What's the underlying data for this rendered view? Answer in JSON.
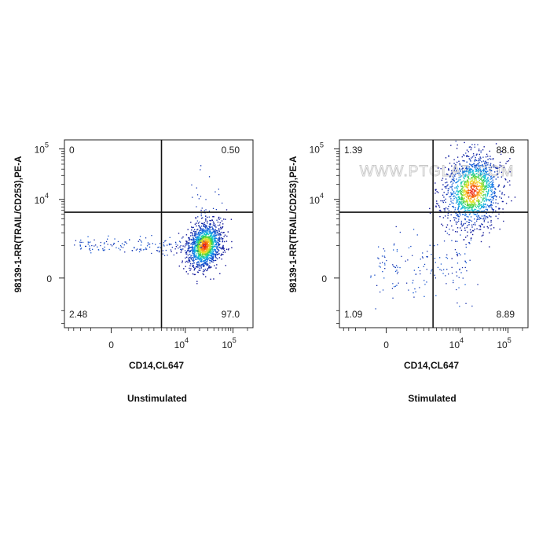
{
  "chart_data": [
    {
      "type": "scatter",
      "title": "Unstimulated",
      "xlabel": "CD14,CL647",
      "ylabel": "98139-1-RR(TRAIL/CD253),PE-A",
      "x_scale": "biexponential",
      "y_scale": "biexponential",
      "x_ticks": [
        {
          "value": 0,
          "base": "0",
          "exp": ""
        },
        {
          "value": 10000,
          "base": "10",
          "exp": "4"
        },
        {
          "value": 100000,
          "base": "10",
          "exp": "5"
        }
      ],
      "y_ticks": [
        {
          "value": 0,
          "base": "0",
          "exp": ""
        },
        {
          "value": 10000,
          "base": "10",
          "exp": "4"
        },
        {
          "value": 100000,
          "base": "10",
          "exp": "5"
        }
      ],
      "gate": {
        "x": 3000,
        "y": 5500
      },
      "quadrants": {
        "top_left": "0",
        "top_right": "0.50",
        "bottom_left": "2.48",
        "bottom_right": "97.0"
      },
      "populations": [
        {
          "x_center": 25000,
          "y_center": 1000,
          "spread_x": 0.18,
          "spread_y": 0.22,
          "fraction": 0.97,
          "tail_to_x": -1200
        }
      ],
      "grid": false,
      "watermark": ""
    },
    {
      "type": "scatter",
      "title": "Stimulated",
      "xlabel": "CD14,CL647",
      "ylabel": "98139-1-RR(TRAIL/CD253),PE-A",
      "x_scale": "biexponential",
      "y_scale": "biexponential",
      "x_ticks": [
        {
          "value": 0,
          "base": "0",
          "exp": ""
        },
        {
          "value": 10000,
          "base": "10",
          "exp": "4"
        },
        {
          "value": 100000,
          "base": "10",
          "exp": "5"
        }
      ],
      "y_ticks": [
        {
          "value": 0,
          "base": "0",
          "exp": ""
        },
        {
          "value": 10000,
          "base": "10",
          "exp": "4"
        },
        {
          "value": 100000,
          "base": "10",
          "exp": "5"
        }
      ],
      "gate": {
        "x": 2500,
        "y": 5500
      },
      "quadrants": {
        "top_left": "1.39",
        "top_right": "88.6",
        "bottom_left": "1.09",
        "bottom_right": "8.89"
      },
      "populations": [
        {
          "x_center": 18000,
          "y_center": 15000,
          "spread_x": 0.3,
          "spread_y": 0.35,
          "fraction": 0.97,
          "tail_to_x": -300
        }
      ],
      "grid": false,
      "watermark": "WWW.PTGLAB.COM"
    }
  ]
}
